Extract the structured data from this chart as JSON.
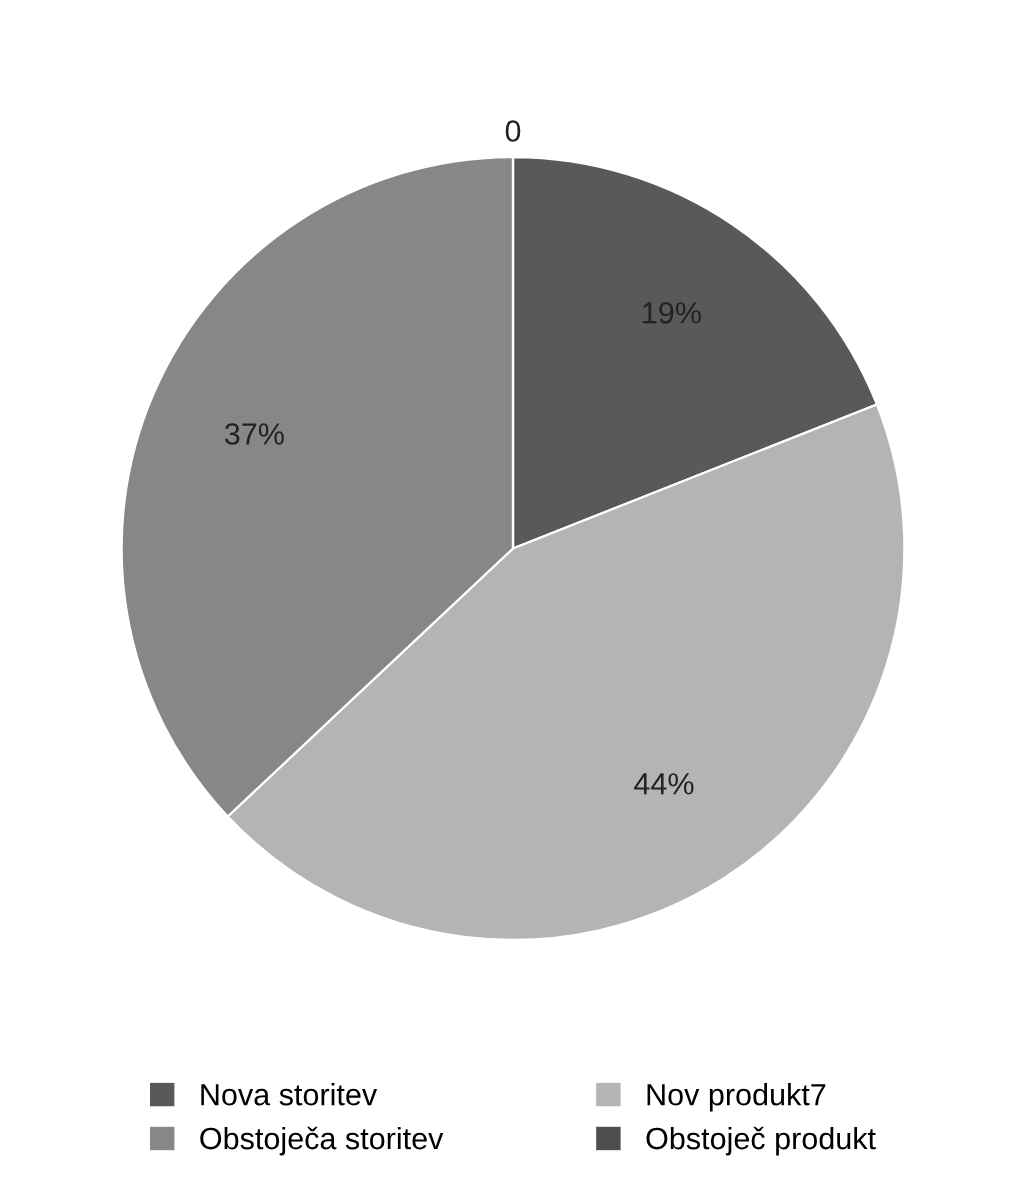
{
  "chart_data": {
    "type": "pie",
    "categories": [
      "Nova storitev",
      "Nov produkt7",
      "Obstoječa storitev",
      "Obstoječ produkt"
    ],
    "values": [
      19,
      44,
      37,
      0
    ],
    "colors": [
      "#595959",
      "#b4b4b4",
      "#878787",
      "#4f4f4f"
    ],
    "value_labels": [
      "19%",
      "44%",
      "37%",
      "0"
    ],
    "legend": "bottom"
  }
}
